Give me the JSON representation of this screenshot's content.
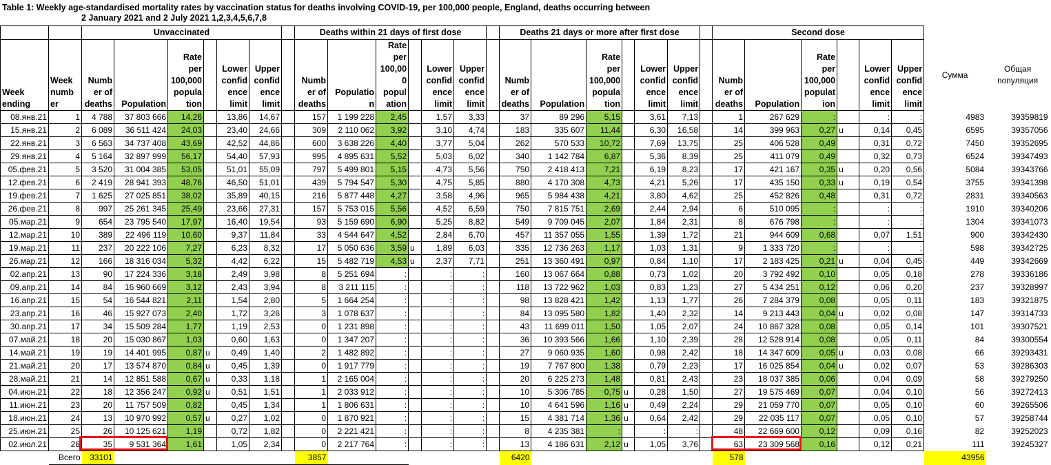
{
  "title": {
    "line1": "Table 1: Weekly age-standardised mortality rates by vaccination status for deaths involving COVID-19, per 100,000 people, England, deaths occurring between",
    "line2": "2 January 2021 and 2 July 2021 1,2,3,4,5,6,7,8"
  },
  "groups": [
    "Unvaccinated",
    "Deaths within 21 days of first dose",
    "Deaths 21 days or more after first dose",
    "Second dose"
  ],
  "headers": {
    "week_ending": "Week\nending",
    "week_number": "Week\nnumb\ner",
    "deaths": "Numb\ner of\ndeaths",
    "groups": [
      {
        "population": "Population",
        "rate": "Rate\nper\n100,000\npopula\ntion"
      },
      {
        "population": "Populatio\nn",
        "rate": "Rate\nper\n100,00\n0\npopul\nation"
      },
      {
        "population": "Population",
        "rate": "Rate\nper\n100,000\npopula\ntion"
      },
      {
        "population": "Population",
        "rate": "Rate\nper\n100,000\npopulat\nion"
      }
    ],
    "lower": "Lower\nconfid\nence\nlimit",
    "upper": "Upper\nconfid\nence\nlimit",
    "sum": "Сумма",
    "total_population": "Общая\nпопуляция"
  },
  "colors": {
    "rate_highlight": "#92d050",
    "total_highlight": "#ffff00",
    "red_box": "#e8141c"
  },
  "rows": [
    [
      "08.янв.21",
      "1",
      [
        "4 788",
        "37 803 666",
        "14,26",
        "",
        "13,86",
        "14,67"
      ],
      [
        "157",
        "1 199 228",
        "2,45",
        "",
        "1,57",
        "3,33"
      ],
      [
        "37",
        "89 296",
        "5,15",
        "",
        "3,61",
        "7,13"
      ],
      [
        "1",
        "267 629",
        ":",
        "",
        ":",
        ":"
      ],
      "4983",
      "39359819"
    ],
    [
      "15.янв.21",
      "2",
      [
        "6 089",
        "36 511 424",
        "24,03",
        "",
        "23,40",
        "24,66"
      ],
      [
        "309",
        "2 110 062",
        "3,92",
        "",
        "3,10",
        "4,74"
      ],
      [
        "183",
        "335 607",
        "11,44",
        "",
        "6,30",
        "16,58"
      ],
      [
        "14",
        "399 963",
        "0,27",
        "u",
        "0,14",
        "0,45"
      ],
      "6595",
      "39357056"
    ],
    [
      "22.янв.21",
      "3",
      [
        "6 563",
        "34 737 408",
        "43,69",
        "",
        "42,52",
        "44,86"
      ],
      [
        "600",
        "3 638 226",
        "4,40",
        "",
        "3,77",
        "5,04"
      ],
      [
        "262",
        "570 533",
        "10,72",
        "",
        "7,69",
        "13,75"
      ],
      [
        "25",
        "406 528",
        "0,49",
        "",
        "0,31",
        "0,72"
      ],
      "7450",
      "39352695"
    ],
    [
      "29.янв.21",
      "4",
      [
        "5 164",
        "32 897 999",
        "56,17",
        "",
        "54,40",
        "57,93"
      ],
      [
        "995",
        "4 895 631",
        "5,52",
        "",
        "5,03",
        "6,02"
      ],
      [
        "340",
        "1 142 784",
        "6,87",
        "",
        "5,36",
        "8,39"
      ],
      [
        "25",
        "411 079",
        "0,49",
        "",
        "0,32",
        "0,73"
      ],
      "6524",
      "39347493"
    ],
    [
      "05.фев.21",
      "5",
      [
        "3 520",
        "31 004 385",
        "53,05",
        "",
        "51,01",
        "55,09"
      ],
      [
        "797",
        "5 499 801",
        "5,15",
        "",
        "4,73",
        "5,56"
      ],
      [
        "750",
        "2 418 413",
        "7,21",
        "",
        "6,19",
        "8,23"
      ],
      [
        "17",
        "421 167",
        "0,35",
        "u",
        "0,20",
        "0,56"
      ],
      "5084",
      "39343766"
    ],
    [
      "12.фев.21",
      "6",
      [
        "2 419",
        "28 941 393",
        "48,76",
        "",
        "46,50",
        "51,01"
      ],
      [
        "439",
        "5 794 547",
        "5,30",
        "",
        "4,75",
        "5,85"
      ],
      [
        "880",
        "4 170 308",
        "4,73",
        "",
        "4,21",
        "5,26"
      ],
      [
        "17",
        "435 150",
        "0,33",
        "u",
        "0,19",
        "0,54"
      ],
      "3755",
      "39341398"
    ],
    [
      "19.фев.21",
      "7",
      [
        "1 625",
        "27 025 851",
        "38,02",
        "",
        "35,89",
        "40,15"
      ],
      [
        "216",
        "5 877 448",
        "4,27",
        "",
        "3,58",
        "4,96"
      ],
      [
        "965",
        "5 984 438",
        "4,21",
        "",
        "3,80",
        "4,62"
      ],
      [
        "25",
        "452 826",
        "0,48",
        "",
        "0,31",
        "0,72"
      ],
      "2831",
      "39340563"
    ],
    [
      "26.фев.21",
      "8",
      [
        "997",
        "25 261 345",
        "25,49",
        "",
        "23,66",
        "27,31"
      ],
      [
        "157",
        "5 753 015",
        "5,56",
        "",
        "4,52",
        "6,59"
      ],
      [
        "750",
        "7 815 751",
        "2,69",
        "",
        "2,44",
        "2,94"
      ],
      [
        "6",
        "510 095",
        ":",
        "",
        ":",
        ":"
      ],
      "1910",
      "39340206"
    ],
    [
      "05.мар.21",
      "9",
      [
        "654",
        "23 795 540",
        "17,97",
        "",
        "16,40",
        "19,54"
      ],
      [
        "93",
        "5 159 690",
        "6,90",
        "",
        "5,25",
        "8,82"
      ],
      [
        "549",
        "9 709 045",
        "2,07",
        "",
        "1,84",
        "2,31"
      ],
      [
        "8",
        "676 798",
        ":",
        "",
        ":",
        ":"
      ],
      "1304",
      "39341073"
    ],
    [
      "12.мар.21",
      "10",
      [
        "389",
        "22 496 119",
        "10,60",
        "",
        "9,37",
        "11,84"
      ],
      [
        "33",
        "4 544 647",
        "4,52",
        "",
        "2,84",
        "6,70"
      ],
      [
        "457",
        "11 357 055",
        "1,55",
        "",
        "1,39",
        "1,72"
      ],
      [
        "21",
        "944 609",
        "0,68",
        "",
        "0,07",
        "1,51"
      ],
      "900",
      "39342430"
    ],
    [
      "19.мар.21",
      "11",
      [
        "237",
        "20 222 106",
        "7,27",
        "",
        "6,23",
        "8,32"
      ],
      [
        "17",
        "5 050 636",
        "3,59",
        "u",
        "1,89",
        "6,03"
      ],
      [
        "335",
        "12 736 263",
        "1,17",
        "",
        "1,03",
        "1,31"
      ],
      [
        "9",
        "1 333 720",
        ":",
        "",
        ":",
        ":"
      ],
      "598",
      "39342725"
    ],
    [
      "26.мар.21",
      "12",
      [
        "166",
        "18 316 034",
        "5,32",
        "",
        "4,42",
        "6,22"
      ],
      [
        "15",
        "5 482 719",
        "4,53",
        "u",
        "2,37",
        "7,71"
      ],
      [
        "251",
        "13 360 491",
        "0,97",
        "",
        "0,84",
        "1,10"
      ],
      [
        "17",
        "2 183 425",
        "0,21",
        "u",
        "0,04",
        "0,45"
      ],
      "449",
      "39342669"
    ],
    [
      "02.апр.21",
      "13",
      [
        "90",
        "17 224 336",
        "3,18",
        "",
        "2,49",
        "3,98"
      ],
      [
        "8",
        "5 251 694",
        ":",
        "",
        ":",
        ":"
      ],
      [
        "160",
        "13 067 664",
        "0,88",
        "",
        "0,73",
        "1,02"
      ],
      [
        "20",
        "3 792 492",
        "0,10",
        "",
        "0,05",
        "0,18"
      ],
      "278",
      "39336186"
    ],
    [
      "09.апр.21",
      "14",
      [
        "84",
        "16 960 669",
        "3,12",
        "",
        "2,43",
        "3,94"
      ],
      [
        "8",
        "3 211 115",
        ":",
        "",
        ":",
        ":"
      ],
      [
        "118",
        "13 722 962",
        "1,03",
        "",
        "0,83",
        "1,23"
      ],
      [
        "27",
        "5 434 251",
        "0,12",
        "",
        "0,06",
        "0,20"
      ],
      "237",
      "39328997"
    ],
    [
      "16.апр.21",
      "15",
      [
        "54",
        "16 544 821",
        "2,11",
        "",
        "1,54",
        "2,80"
      ],
      [
        "5",
        "1 664 254",
        ":",
        "",
        ":",
        ":"
      ],
      [
        "98",
        "13 828 421",
        "1,42",
        "",
        "1,13",
        "1,77"
      ],
      [
        "26",
        "7 284 379",
        "0,08",
        "",
        "0,05",
        "0,11"
      ],
      "183",
      "39321875"
    ],
    [
      "23.апр.21",
      "16",
      [
        "46",
        "15 927 073",
        "2,40",
        "",
        "1,72",
        "3,26"
      ],
      [
        "3",
        "1 078 637",
        ":",
        "",
        ":",
        ":"
      ],
      [
        "84",
        "13 095 580",
        "1,82",
        "",
        "1,40",
        "2,32"
      ],
      [
        "14",
        "9 213 443",
        "0,04",
        "u",
        "0,02",
        "0,08"
      ],
      "147",
      "39314733"
    ],
    [
      "30.апр.21",
      "17",
      [
        "34",
        "15 509 284",
        "1,77",
        "",
        "1,19",
        "2,53"
      ],
      [
        "0",
        "1 231 898",
        ":",
        "",
        ":",
        ":"
      ],
      [
        "43",
        "11 699 011",
        "1,50",
        "",
        "1,05",
        "2,07"
      ],
      [
        "24",
        "10 867 328",
        "0,08",
        "",
        "0,05",
        "0,14"
      ],
      "101",
      "39307521"
    ],
    [
      "07.май.21",
      "18",
      [
        "20",
        "15 030 867",
        "1,03",
        "",
        "0,60",
        "1,63"
      ],
      [
        "0",
        "1 347 207",
        ":",
        "",
        ":",
        ":"
      ],
      [
        "36",
        "10 393 566",
        "1,66",
        "",
        "1,10",
        "2,39"
      ],
      [
        "28",
        "12 528 914",
        "0,08",
        "",
        "0,05",
        "0,11"
      ],
      "84",
      "39300554"
    ],
    [
      "14.май.21",
      "19",
      [
        "19",
        "14 401 995",
        "0,87",
        "u",
        "0,49",
        "1,40"
      ],
      [
        "2",
        "1 482 892",
        ":",
        "",
        ":",
        ":"
      ],
      [
        "27",
        "9 060 935",
        "1,60",
        "",
        "0,98",
        "2,42"
      ],
      [
        "18",
        "14 347 609",
        "0,05",
        "u",
        "0,03",
        "0,08"
      ],
      "66",
      "39293431"
    ],
    [
      "21.май.21",
      "20",
      [
        "17",
        "13 574 870",
        "0,84",
        "u",
        "0,45",
        "1,39"
      ],
      [
        "0",
        "1 917 779",
        ":",
        "",
        ":",
        ":"
      ],
      [
        "19",
        "7 767 800",
        "1,38",
        "",
        "0,79",
        "2,23"
      ],
      [
        "17",
        "16 025 854",
        "0,04",
        "u",
        "0,02",
        "0,07"
      ],
      "53",
      "39286303"
    ],
    [
      "28.май.21",
      "21",
      [
        "14",
        "12 851 588",
        "0,67",
        "u",
        "0,33",
        "1,18"
      ],
      [
        "1",
        "2 165 004",
        ":",
        "",
        ":",
        ":"
      ],
      [
        "20",
        "6 225 273",
        "1,48",
        "",
        "0,81",
        "2,43"
      ],
      [
        "23",
        "18 037 385",
        "0,06",
        "",
        "0,04",
        "0,09"
      ],
      "58",
      "39279250"
    ],
    [
      "04.июн.21",
      "22",
      [
        "18",
        "12 356 247",
        "0,92",
        "u",
        "0,51",
        "1,51"
      ],
      [
        "1",
        "2 033 912",
        ":",
        "",
        ":",
        ":"
      ],
      [
        "10",
        "5 306 785",
        "0,75",
        "u",
        "0,28",
        "1,50"
      ],
      [
        "27",
        "19 575 469",
        "0,07",
        "",
        "0,04",
        "0,10"
      ],
      "56",
      "39272413"
    ],
    [
      "11.июн.21",
      "23",
      [
        "20",
        "11 757 509",
        "0,82",
        "",
        "0,45",
        "1,34"
      ],
      [
        "1",
        "1 806 631",
        ":",
        "",
        ":",
        ":"
      ],
      [
        "10",
        "4 641 596",
        "1,16",
        "u",
        "0,49",
        "2,24"
      ],
      [
        "29",
        "21 059 770",
        "0,07",
        "",
        "0,05",
        "0,10"
      ],
      "60",
      "39265506"
    ],
    [
      "18.июн.21",
      "24",
      [
        "13",
        "10 970 992",
        "0,57",
        "u",
        "0,27",
        "1,02"
      ],
      [
        "0",
        "1 870 921",
        ":",
        "",
        ":",
        ":"
      ],
      [
        "15",
        "4 381 714",
        "1,36",
        "u",
        "0,64",
        "2,42"
      ],
      [
        "29",
        "22 035 117",
        "0,07",
        "",
        "0,05",
        "0,10"
      ],
      "57",
      "39258744"
    ],
    [
      "25.июн.21",
      "25",
      [
        "26",
        "10 125 621",
        "1,19",
        "",
        "0,72",
        "1,82"
      ],
      [
        "0",
        "2 221 421",
        ":",
        "",
        ":",
        ":"
      ],
      [
        "8",
        "4 235 381",
        ":",
        "",
        ":",
        ":"
      ],
      [
        "48",
        "22 669 600",
        "0,12",
        "",
        "0,09",
        "0,16"
      ],
      "82",
      "39252023"
    ],
    [
      "02.июл.21",
      "26",
      [
        "35",
        "9 531 364",
        "1,61",
        "",
        "1,05",
        "2,34"
      ],
      [
        "0",
        "2 217 764",
        ":",
        "",
        ":",
        ":"
      ],
      [
        "13",
        "4 186 631",
        "2,12",
        "u",
        "1,05",
        "3,76"
      ],
      [
        "63",
        "23 309 568",
        "0,16",
        "",
        "0,12",
        "0,21"
      ],
      "111",
      "39245327"
    ]
  ],
  "footer": {
    "label": "Всего",
    "totals": [
      "33101",
      "3857",
      "6420",
      "578"
    ],
    "sum_total": "43956"
  }
}
